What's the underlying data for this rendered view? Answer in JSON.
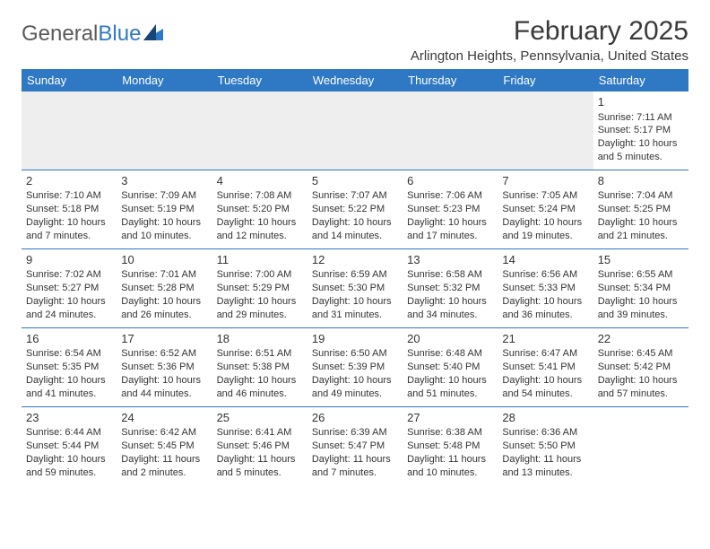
{
  "logo": {
    "text1": "General",
    "text2": "Blue"
  },
  "title": "February 2025",
  "location": "Arlington Heights, Pennsylvania, United States",
  "colors": {
    "header_bg": "#2f78c4",
    "header_text": "#ffffff",
    "border": "#2f78c4",
    "blank_bg": "#eeeeee",
    "text": "#333333",
    "logo_gray": "#5a5a5a",
    "logo_blue": "#2f78c4"
  },
  "weekdays": [
    "Sunday",
    "Monday",
    "Tuesday",
    "Wednesday",
    "Thursday",
    "Friday",
    "Saturday"
  ],
  "weeks": [
    [
      null,
      null,
      null,
      null,
      null,
      null,
      {
        "n": "1",
        "sr": "Sunrise: 7:11 AM",
        "ss": "Sunset: 5:17 PM",
        "d1": "Daylight: 10 hours",
        "d2": "and 5 minutes."
      }
    ],
    [
      {
        "n": "2",
        "sr": "Sunrise: 7:10 AM",
        "ss": "Sunset: 5:18 PM",
        "d1": "Daylight: 10 hours",
        "d2": "and 7 minutes."
      },
      {
        "n": "3",
        "sr": "Sunrise: 7:09 AM",
        "ss": "Sunset: 5:19 PM",
        "d1": "Daylight: 10 hours",
        "d2": "and 10 minutes."
      },
      {
        "n": "4",
        "sr": "Sunrise: 7:08 AM",
        "ss": "Sunset: 5:20 PM",
        "d1": "Daylight: 10 hours",
        "d2": "and 12 minutes."
      },
      {
        "n": "5",
        "sr": "Sunrise: 7:07 AM",
        "ss": "Sunset: 5:22 PM",
        "d1": "Daylight: 10 hours",
        "d2": "and 14 minutes."
      },
      {
        "n": "6",
        "sr": "Sunrise: 7:06 AM",
        "ss": "Sunset: 5:23 PM",
        "d1": "Daylight: 10 hours",
        "d2": "and 17 minutes."
      },
      {
        "n": "7",
        "sr": "Sunrise: 7:05 AM",
        "ss": "Sunset: 5:24 PM",
        "d1": "Daylight: 10 hours",
        "d2": "and 19 minutes."
      },
      {
        "n": "8",
        "sr": "Sunrise: 7:04 AM",
        "ss": "Sunset: 5:25 PM",
        "d1": "Daylight: 10 hours",
        "d2": "and 21 minutes."
      }
    ],
    [
      {
        "n": "9",
        "sr": "Sunrise: 7:02 AM",
        "ss": "Sunset: 5:27 PM",
        "d1": "Daylight: 10 hours",
        "d2": "and 24 minutes."
      },
      {
        "n": "10",
        "sr": "Sunrise: 7:01 AM",
        "ss": "Sunset: 5:28 PM",
        "d1": "Daylight: 10 hours",
        "d2": "and 26 minutes."
      },
      {
        "n": "11",
        "sr": "Sunrise: 7:00 AM",
        "ss": "Sunset: 5:29 PM",
        "d1": "Daylight: 10 hours",
        "d2": "and 29 minutes."
      },
      {
        "n": "12",
        "sr": "Sunrise: 6:59 AM",
        "ss": "Sunset: 5:30 PM",
        "d1": "Daylight: 10 hours",
        "d2": "and 31 minutes."
      },
      {
        "n": "13",
        "sr": "Sunrise: 6:58 AM",
        "ss": "Sunset: 5:32 PM",
        "d1": "Daylight: 10 hours",
        "d2": "and 34 minutes."
      },
      {
        "n": "14",
        "sr": "Sunrise: 6:56 AM",
        "ss": "Sunset: 5:33 PM",
        "d1": "Daylight: 10 hours",
        "d2": "and 36 minutes."
      },
      {
        "n": "15",
        "sr": "Sunrise: 6:55 AM",
        "ss": "Sunset: 5:34 PM",
        "d1": "Daylight: 10 hours",
        "d2": "and 39 minutes."
      }
    ],
    [
      {
        "n": "16",
        "sr": "Sunrise: 6:54 AM",
        "ss": "Sunset: 5:35 PM",
        "d1": "Daylight: 10 hours",
        "d2": "and 41 minutes."
      },
      {
        "n": "17",
        "sr": "Sunrise: 6:52 AM",
        "ss": "Sunset: 5:36 PM",
        "d1": "Daylight: 10 hours",
        "d2": "and 44 minutes."
      },
      {
        "n": "18",
        "sr": "Sunrise: 6:51 AM",
        "ss": "Sunset: 5:38 PM",
        "d1": "Daylight: 10 hours",
        "d2": "and 46 minutes."
      },
      {
        "n": "19",
        "sr": "Sunrise: 6:50 AM",
        "ss": "Sunset: 5:39 PM",
        "d1": "Daylight: 10 hours",
        "d2": "and 49 minutes."
      },
      {
        "n": "20",
        "sr": "Sunrise: 6:48 AM",
        "ss": "Sunset: 5:40 PM",
        "d1": "Daylight: 10 hours",
        "d2": "and 51 minutes."
      },
      {
        "n": "21",
        "sr": "Sunrise: 6:47 AM",
        "ss": "Sunset: 5:41 PM",
        "d1": "Daylight: 10 hours",
        "d2": "and 54 minutes."
      },
      {
        "n": "22",
        "sr": "Sunrise: 6:45 AM",
        "ss": "Sunset: 5:42 PM",
        "d1": "Daylight: 10 hours",
        "d2": "and 57 minutes."
      }
    ],
    [
      {
        "n": "23",
        "sr": "Sunrise: 6:44 AM",
        "ss": "Sunset: 5:44 PM",
        "d1": "Daylight: 10 hours",
        "d2": "and 59 minutes."
      },
      {
        "n": "24",
        "sr": "Sunrise: 6:42 AM",
        "ss": "Sunset: 5:45 PM",
        "d1": "Daylight: 11 hours",
        "d2": "and 2 minutes."
      },
      {
        "n": "25",
        "sr": "Sunrise: 6:41 AM",
        "ss": "Sunset: 5:46 PM",
        "d1": "Daylight: 11 hours",
        "d2": "and 5 minutes."
      },
      {
        "n": "26",
        "sr": "Sunrise: 6:39 AM",
        "ss": "Sunset: 5:47 PM",
        "d1": "Daylight: 11 hours",
        "d2": "and 7 minutes."
      },
      {
        "n": "27",
        "sr": "Sunrise: 6:38 AM",
        "ss": "Sunset: 5:48 PM",
        "d1": "Daylight: 11 hours",
        "d2": "and 10 minutes."
      },
      {
        "n": "28",
        "sr": "Sunrise: 6:36 AM",
        "ss": "Sunset: 5:50 PM",
        "d1": "Daylight: 11 hours",
        "d2": "and 13 minutes."
      },
      null
    ]
  ]
}
